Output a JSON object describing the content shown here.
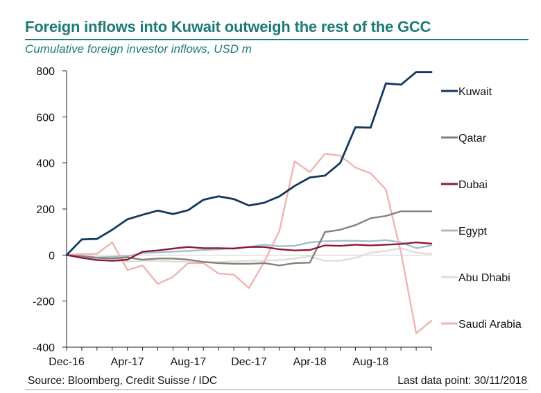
{
  "title": "Foreign inflows into Kuwait outweigh the rest of the GCC",
  "subtitle": "Cumulative foreign investor inflows, USD m",
  "footer": {
    "source": "Source: Bloomberg, Credit Suisse / IDC",
    "last_point": "Last data point: 30/11/2018"
  },
  "chart_data": {
    "type": "line",
    "title": "Foreign inflows into Kuwait outweigh the rest of the GCC",
    "subtitle": "Cumulative foreign investor inflows, USD m",
    "xlabel": "",
    "ylabel": "",
    "ylim": [
      -400,
      800
    ],
    "yticks": [
      800,
      600,
      400,
      200,
      0,
      -200,
      -400
    ],
    "ytick_labels": [
      "800",
      "600",
      "400",
      "200",
      "0",
      "-200",
      "-400"
    ],
    "x_start": "2016-12",
    "x_end": "2018-11",
    "xticks": [
      "Dec-16",
      "Apr-17",
      "Aug-17",
      "Dec-17",
      "Apr-18",
      "Aug-18"
    ],
    "grid": false,
    "legend_position": "right",
    "series": [
      {
        "name": "Kuwait",
        "color": "#13375e",
        "x": [
          0,
          1,
          2,
          3,
          4,
          5,
          6,
          7,
          8,
          9,
          10,
          11,
          12,
          13,
          14,
          15,
          16,
          17,
          18,
          19,
          20,
          21,
          22,
          23,
          24
        ],
        "values": [
          0,
          68,
          70,
          110,
          155,
          175,
          193,
          178,
          195,
          240,
          255,
          243,
          215,
          227,
          255,
          300,
          337,
          345,
          400,
          555,
          553,
          745,
          740,
          795,
          795
        ]
      },
      {
        "name": "Qatar",
        "color": "#8a7f78",
        "x": [
          0,
          1,
          2,
          3,
          4,
          5,
          6,
          7,
          8,
          9,
          10,
          11,
          12,
          13,
          14,
          15,
          16,
          17,
          18,
          19,
          20,
          21,
          22,
          23,
          24
        ],
        "values": [
          0,
          -5,
          -12,
          -15,
          -10,
          -20,
          -15,
          -15,
          -20,
          -30,
          -35,
          -38,
          -38,
          -35,
          -45,
          -35,
          -33,
          100,
          110,
          130,
          160,
          170,
          190,
          190,
          190
        ]
      },
      {
        "name": "Dubai",
        "color": "#8b1a3a",
        "x": [
          0,
          1,
          2,
          3,
          4,
          5,
          6,
          7,
          8,
          9,
          10,
          11,
          12,
          13,
          14,
          15,
          16,
          17,
          18,
          19,
          20,
          21,
          22,
          23,
          24
        ],
        "values": [
          0,
          -12,
          -22,
          -25,
          -20,
          15,
          20,
          28,
          35,
          30,
          30,
          28,
          35,
          35,
          25,
          20,
          22,
          42,
          40,
          45,
          42,
          45,
          48,
          55,
          50
        ]
      },
      {
        "name": "Egypt",
        "color": "#a8bccb",
        "x": [
          0,
          1,
          2,
          3,
          4,
          5,
          6,
          7,
          8,
          9,
          10,
          11,
          12,
          13,
          14,
          15,
          16,
          17,
          18,
          19,
          20,
          21,
          22,
          23,
          24
        ],
        "values": [
          0,
          -5,
          -10,
          -8,
          -5,
          8,
          12,
          15,
          18,
          22,
          25,
          30,
          35,
          45,
          38,
          40,
          55,
          60,
          62,
          62,
          60,
          65,
          55,
          30,
          42
        ]
      },
      {
        "name": "Abu Dhabi",
        "color": "#e0ddd6",
        "x": [
          0,
          1,
          2,
          3,
          4,
          5,
          6,
          7,
          8,
          9,
          10,
          11,
          12,
          13,
          14,
          15,
          16,
          17,
          18,
          19,
          20,
          21,
          22,
          23,
          24
        ],
        "values": [
          0,
          -5,
          -15,
          -25,
          -28,
          -25,
          -25,
          -28,
          -30,
          -30,
          -30,
          -28,
          -25,
          -25,
          -22,
          -15,
          -5,
          -25,
          -25,
          -12,
          10,
          18,
          30,
          10,
          5
        ]
      },
      {
        "name": "Saudi Arabia",
        "color": "#efb4b2",
        "x": [
          0,
          1,
          2,
          3,
          4,
          5,
          6,
          7,
          8,
          9,
          10,
          11,
          12,
          13,
          14,
          15,
          16,
          17,
          18,
          19,
          20,
          21,
          22,
          23,
          24
        ],
        "values": [
          0,
          5,
          5,
          55,
          -65,
          -45,
          -125,
          -95,
          -35,
          -35,
          -80,
          -85,
          -143,
          -30,
          105,
          407,
          360,
          440,
          432,
          380,
          355,
          285,
          10,
          -340,
          -285
        ]
      }
    ]
  }
}
